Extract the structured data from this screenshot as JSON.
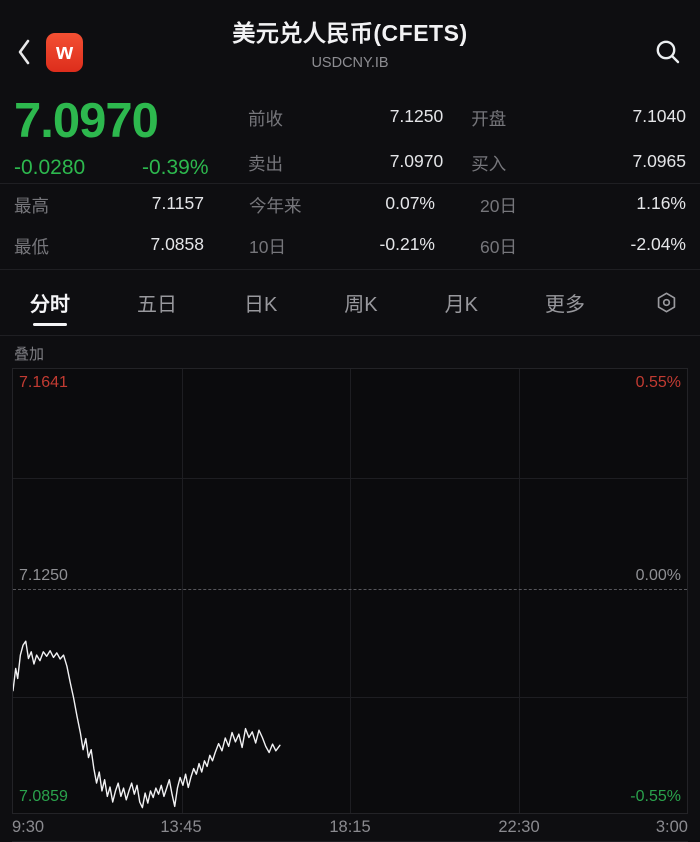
{
  "header": {
    "title": "美元兑人民币(CFETS)",
    "subtitle": "USDCNY.IB",
    "logo_text": "w"
  },
  "quote": {
    "last_price": "7.0970",
    "change": "-0.0280",
    "change_pct": "-0.39%",
    "fields": [
      {
        "label": "前收",
        "value": "7.1250"
      },
      {
        "label": "开盘",
        "value": "7.1040"
      },
      {
        "label": "卖出",
        "value": "7.0970"
      },
      {
        "label": "买入",
        "value": "7.0965"
      }
    ],
    "stats": [
      {
        "label": "最高",
        "value": "7.1157"
      },
      {
        "label": "今年来",
        "value": "0.07%"
      },
      {
        "label": "20日",
        "value": "1.16%"
      },
      {
        "label": "最低",
        "value": "7.0858"
      },
      {
        "label": "10日",
        "value": "-0.21%"
      },
      {
        "label": "60日",
        "value": "-2.04%"
      }
    ]
  },
  "tabs": {
    "items": [
      "分时",
      "五日",
      "日K",
      "周K",
      "月K",
      "更多"
    ],
    "active": "分时",
    "settings_icon": "hexagon-gear"
  },
  "overlay_label": "叠加",
  "colors": {
    "down_green": "#2db84e",
    "up_red": "#c23b32",
    "neutral_gray": "#8f9094",
    "line_white": "#f2f2f4",
    "background": "#0e0e11",
    "logo_red_top": "#f35033",
    "logo_red_bottom": "#dd2d1c"
  },
  "chart_data": {
    "type": "line",
    "title": "USDCNY.IB 分时走势",
    "x_axis_labels": [
      "9:30",
      "13:45",
      "18:15",
      "22:30",
      "3:00"
    ],
    "y_levels": {
      "top": {
        "price": "7.1641",
        "pct": "0.55%"
      },
      "mid": {
        "price": "7.1250",
        "pct": "0.00%"
      },
      "bottom": {
        "price": "7.0859",
        "pct": "-0.55%"
      }
    },
    "prev_close": 7.125,
    "day_high": 7.1157,
    "day_low": 7.0858,
    "current": 7.097,
    "grid": true,
    "series": [
      {
        "name": "price",
        "color": "#f2f2f4",
        "points": [
          [
            0.0,
            7.1068
          ],
          [
            0.004,
            7.1108
          ],
          [
            0.007,
            7.109
          ],
          [
            0.011,
            7.1132
          ],
          [
            0.015,
            7.115
          ],
          [
            0.019,
            7.1157
          ],
          [
            0.023,
            7.1126
          ],
          [
            0.027,
            7.1138
          ],
          [
            0.031,
            7.1116
          ],
          [
            0.035,
            7.1132
          ],
          [
            0.04,
            7.1122
          ],
          [
            0.045,
            7.1138
          ],
          [
            0.05,
            7.113
          ],
          [
            0.055,
            7.114
          ],
          [
            0.06,
            7.1128
          ],
          [
            0.065,
            7.1136
          ],
          [
            0.07,
            7.1125
          ],
          [
            0.075,
            7.1132
          ],
          [
            0.08,
            7.1112
          ],
          [
            0.085,
            7.1082
          ],
          [
            0.09,
            7.1055
          ],
          [
            0.095,
            7.1022
          ],
          [
            0.1,
            7.0992
          ],
          [
            0.104,
            7.0962
          ],
          [
            0.108,
            7.0982
          ],
          [
            0.112,
            7.0948
          ],
          [
            0.116,
            7.0962
          ],
          [
            0.12,
            7.0928
          ],
          [
            0.124,
            7.0902
          ],
          [
            0.128,
            7.0922
          ],
          [
            0.132,
            7.0888
          ],
          [
            0.136,
            7.0908
          ],
          [
            0.14,
            7.0878
          ],
          [
            0.144,
            7.0895
          ],
          [
            0.148,
            7.0868
          ],
          [
            0.152,
            7.0888
          ],
          [
            0.156,
            7.0902
          ],
          [
            0.16,
            7.0878
          ],
          [
            0.164,
            7.0893
          ],
          [
            0.168,
            7.0872
          ],
          [
            0.172,
            7.0888
          ],
          [
            0.176,
            7.0902
          ],
          [
            0.18,
            7.0882
          ],
          [
            0.184,
            7.0898
          ],
          [
            0.188,
            7.0868
          ],
          [
            0.192,
            7.0858
          ],
          [
            0.196,
            7.0884
          ],
          [
            0.2,
            7.0866
          ],
          [
            0.204,
            7.0888
          ],
          [
            0.208,
            7.0876
          ],
          [
            0.212,
            7.0893
          ],
          [
            0.216,
            7.0882
          ],
          [
            0.22,
            7.0898
          ],
          [
            0.224,
            7.0878
          ],
          [
            0.228,
            7.0893
          ],
          [
            0.232,
            7.0908
          ],
          [
            0.236,
            7.0882
          ],
          [
            0.24,
            7.086
          ],
          [
            0.244,
            7.0893
          ],
          [
            0.248,
            7.0912
          ],
          [
            0.252,
            7.0898
          ],
          [
            0.256,
            7.0918
          ],
          [
            0.26,
            7.0894
          ],
          [
            0.264,
            7.0913
          ],
          [
            0.268,
            7.0928
          ],
          [
            0.272,
            7.0918
          ],
          [
            0.276,
            7.0937
          ],
          [
            0.28,
            7.0922
          ],
          [
            0.284,
            7.0942
          ],
          [
            0.288,
            7.0932
          ],
          [
            0.292,
            7.0952
          ],
          [
            0.296,
            7.0942
          ],
          [
            0.3,
            7.0957
          ],
          [
            0.305,
            7.0973
          ],
          [
            0.31,
            7.096
          ],
          [
            0.315,
            7.0983
          ],
          [
            0.32,
            7.0968
          ],
          [
            0.325,
            7.0993
          ],
          [
            0.33,
            7.0976
          ],
          [
            0.335,
            7.099
          ],
          [
            0.34,
            7.0966
          ],
          [
            0.345,
            7.1
          ],
          [
            0.35,
            7.0984
          ],
          [
            0.355,
            7.0994
          ],
          [
            0.36,
            7.0974
          ],
          [
            0.365,
            7.0997
          ],
          [
            0.37,
            7.0984
          ],
          [
            0.375,
            7.0968
          ],
          [
            0.38,
            7.0957
          ],
          [
            0.385,
            7.0972
          ],
          [
            0.39,
            7.096
          ],
          [
            0.396,
            7.097
          ]
        ]
      }
    ]
  }
}
